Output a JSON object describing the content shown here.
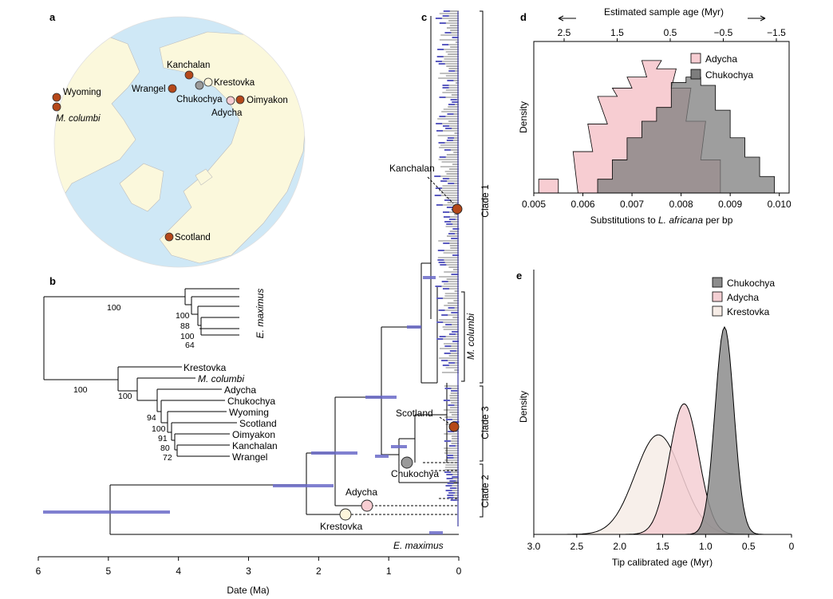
{
  "panels": {
    "a": "a",
    "b": "b",
    "c": "c",
    "d": "d",
    "e": "e"
  },
  "map": {
    "sites": [
      {
        "name": "Wyoming",
        "color": "#b5481a"
      },
      {
        "name": "M. columbi",
        "color": "#b5481a"
      },
      {
        "name": "Kanchalan",
        "color": "#b5481a"
      },
      {
        "name": "Krestovka",
        "color": "#fdf6dc"
      },
      {
        "name": "Wrangel",
        "color": "#b5481a"
      },
      {
        "name": "Chukochya",
        "color": "#9a9a9a"
      },
      {
        "name": "Oimyakon",
        "color": "#b5481a"
      },
      {
        "name": "Adycha",
        "color": "#f7cdd2"
      },
      {
        "name": "Scotland",
        "color": "#b5481a"
      }
    ],
    "ocean_color": "#cfe8f6",
    "land_color": "#fbf8dc"
  },
  "tree_b": {
    "taxa": [
      "E. maximus",
      "Krestovka",
      "M. columbi",
      "Adycha",
      "Chukochya",
      "Wyoming",
      "Scotland",
      "Oimyakon",
      "Kanchalan",
      "Wrangel"
    ],
    "support": [
      "100",
      "100",
      "88",
      "100",
      "64",
      "100",
      "100",
      "94",
      "100",
      "91",
      "80",
      "72"
    ]
  },
  "tree_c": {
    "clades": [
      "Clade 1",
      "Clade 2",
      "Clade 3"
    ],
    "subclade": "M. columbi",
    "labels": [
      "Kanchalan",
      "Scotland",
      "Chukochya",
      "Adycha",
      "Krestovka",
      "E. maximus"
    ],
    "xaxis": {
      "label": "Date (Ma)",
      "ticks": [
        "6",
        "5",
        "4",
        "3",
        "2",
        "1",
        "0"
      ]
    }
  },
  "chart_data": [
    {
      "panel": "d",
      "type": "histogram",
      "xlabel_prefix": "Substitutions to ",
      "xlabel_italic": "L. africana",
      "xlabel_suffix": " per bp",
      "top_axis_label": "Estimated sample age (Myr)",
      "ylabel": "Density",
      "xlim": [
        0.005,
        0.0102
      ],
      "xticks": [
        "0.005",
        "0.006",
        "0.007",
        "0.008",
        "0.009",
        "0.010"
      ],
      "top_ticks": [
        "2.5",
        "1.5",
        "0.5",
        "−0.5",
        "−1.5"
      ],
      "series": [
        {
          "name": "Adycha",
          "color": "#f7cdd2",
          "bins": [
            0.0051,
            0.0055,
            0.0058,
            0.0061,
            0.0063,
            0.0066,
            0.0069,
            0.0072,
            0.0075,
            0.0078,
            0.0081,
            0.0084
          ],
          "values": [
            0.5,
            0.0,
            1.5,
            2.5,
            3.5,
            3.8,
            4.2,
            4.8,
            4.5,
            3.8,
            2.6,
            1.2
          ]
        },
        {
          "name": "Chukochya",
          "color": "#7d7d7d",
          "bins": [
            0.0063,
            0.0066,
            0.0069,
            0.0072,
            0.0075,
            0.0078,
            0.0081,
            0.0084,
            0.0087,
            0.009,
            0.0093,
            0.0096
          ],
          "values": [
            0.5,
            1.2,
            2.0,
            2.6,
            3.1,
            4.0,
            4.2,
            3.9,
            3.0,
            2.0,
            1.3,
            0.6
          ]
        }
      ]
    },
    {
      "panel": "e",
      "type": "density",
      "xlabel": "Tip calibrated age (Myr)",
      "ylabel": "Density",
      "xlim": [
        3.0,
        0.0
      ],
      "xticks": [
        "3.0",
        "2.5",
        "2.0",
        "1.5",
        "1.0",
        "0.5",
        "0"
      ],
      "series": [
        {
          "name": "Chukochya",
          "color": "#8c8c8c",
          "mode": 0.78,
          "sd": 0.11,
          "peak": 1.0
        },
        {
          "name": "Adycha",
          "color": "#f4cfd3",
          "mode": 1.25,
          "sd": 0.17,
          "peak": 0.63
        },
        {
          "name": "Krestovka",
          "color": "#f6ece6",
          "mode": 1.55,
          "sd": 0.27,
          "peak": 0.48
        }
      ]
    }
  ]
}
